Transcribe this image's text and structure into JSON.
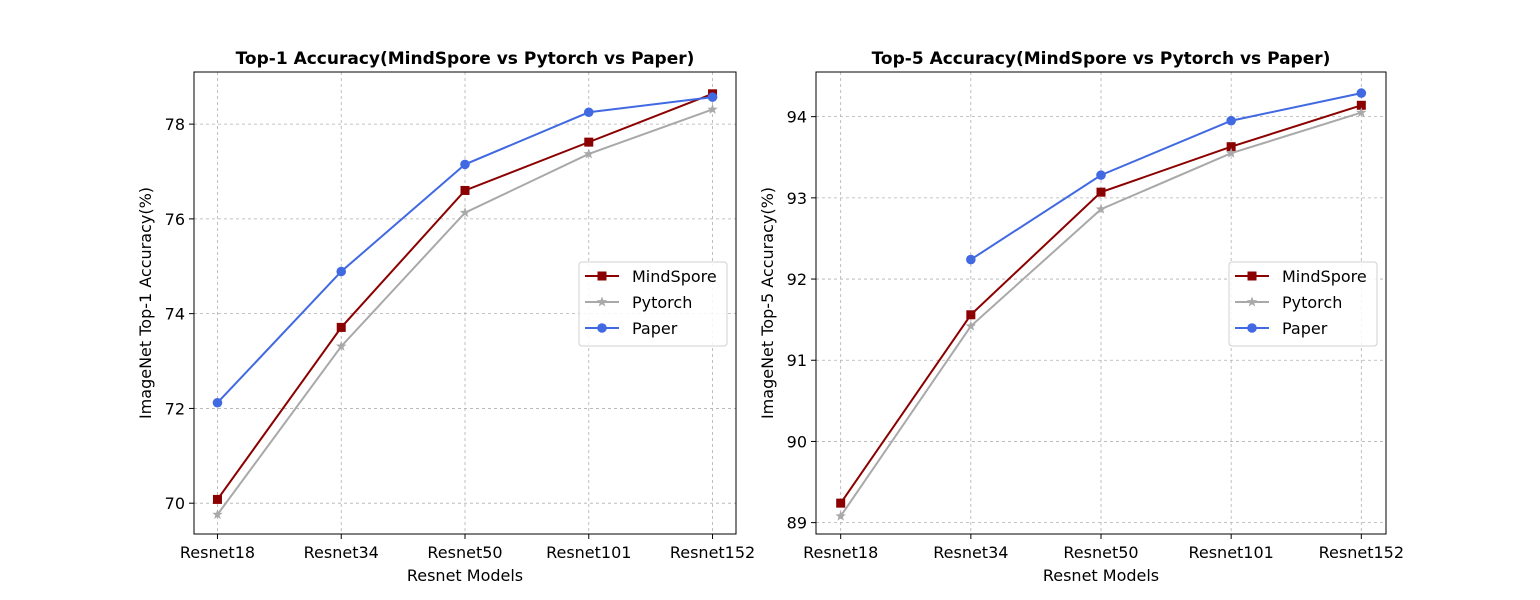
{
  "chart_data": [
    {
      "type": "line",
      "title": "Top-1 Accuracy(MindSpore vs Pytorch vs Paper)",
      "xlabel": "Resnet Models",
      "ylabel": "ImageNet Top-1 Accuracy(%)",
      "categories": [
        "Resnet18",
        "Resnet34",
        "Resnet50",
        "Resnet101",
        "Resnet152"
      ],
      "ylim": [
        69.35,
        79.1
      ],
      "yticks": [
        70,
        72,
        74,
        76,
        78
      ],
      "grid": true,
      "legend_position": "center-right",
      "series": [
        {
          "name": "MindSpore",
          "color": "#8b0000",
          "marker": "square",
          "values": [
            70.08,
            73.71,
            76.6,
            77.62,
            78.64
          ]
        },
        {
          "name": "Pytorch",
          "color": "#a9a9a9",
          "marker": "star",
          "values": [
            69.76,
            73.31,
            76.13,
            77.37,
            78.31
          ]
        },
        {
          "name": "Paper",
          "color": "#4169e1",
          "marker": "circle",
          "values": [
            72.12,
            74.89,
            77.15,
            78.25,
            78.57
          ]
        }
      ]
    },
    {
      "type": "line",
      "title": "Top-5 Accuracy(MindSpore vs Pytorch vs Paper)",
      "xlabel": "Resnet Models",
      "ylabel": "ImageNet Top-5 Accuracy(%)",
      "categories": [
        "Resnet18",
        "Resnet34",
        "Resnet50",
        "Resnet101",
        "Resnet152"
      ],
      "ylim": [
        88.86,
        94.55
      ],
      "yticks": [
        89,
        90,
        91,
        92,
        93,
        94
      ],
      "grid": true,
      "legend_position": "center-right",
      "series": [
        {
          "name": "MindSpore",
          "color": "#8b0000",
          "marker": "square",
          "values": [
            89.24,
            91.56,
            93.07,
            93.63,
            94.14
          ]
        },
        {
          "name": "Pytorch",
          "color": "#a9a9a9",
          "marker": "star",
          "values": [
            89.08,
            91.42,
            92.86,
            93.55,
            94.05
          ]
        },
        {
          "name": "Paper",
          "color": "#4169e1",
          "marker": "circle",
          "values": [
            null,
            92.24,
            93.28,
            93.95,
            94.29
          ]
        }
      ]
    }
  ]
}
